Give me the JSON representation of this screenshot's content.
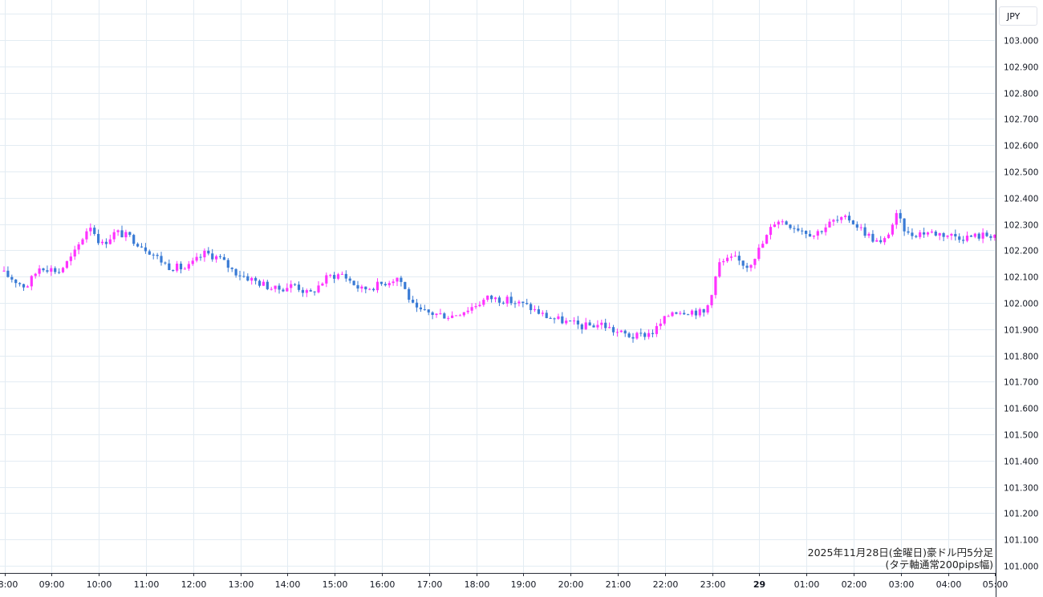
{
  "currency_label": "JPY",
  "caption_line1": "2025年11月28日(金曜日)豪ドル円5分足",
  "caption_line2": "(タテ軸通常200pips幅)",
  "colors": {
    "up": "#ff33ff",
    "down": "#3a7bd5",
    "grid": "#e3ecf3",
    "axis_text": "#131722"
  },
  "chart_data": {
    "type": "candlestick",
    "title": "",
    "ylabel": "JPY",
    "ylim": [
      100.99,
      103.05
    ],
    "y_ticks": [
      "103.000",
      "102.900",
      "102.800",
      "102.700",
      "102.600",
      "102.500",
      "102.400",
      "102.300",
      "102.200",
      "102.100",
      "102.000",
      "101.900",
      "101.800",
      "101.700",
      "101.600",
      "101.500",
      "101.400",
      "101.300",
      "101.200",
      "101.100",
      "101.000"
    ],
    "x_ticks": [
      {
        "label": "08:00",
        "hour": 8
      },
      {
        "label": "09:00",
        "hour": 9
      },
      {
        "label": "10:00",
        "hour": 10
      },
      {
        "label": "11:00",
        "hour": 11
      },
      {
        "label": "12:00",
        "hour": 12
      },
      {
        "label": "13:00",
        "hour": 13
      },
      {
        "label": "14:00",
        "hour": 14
      },
      {
        "label": "15:00",
        "hour": 15
      },
      {
        "label": "16:00",
        "hour": 16
      },
      {
        "label": "17:00",
        "hour": 17
      },
      {
        "label": "18:00",
        "hour": 18
      },
      {
        "label": "19:00",
        "hour": 19
      },
      {
        "label": "20:00",
        "hour": 20
      },
      {
        "label": "21:00",
        "hour": 21
      },
      {
        "label": "22:00",
        "hour": 22
      },
      {
        "label": "23:00",
        "hour": 23
      },
      {
        "label": "29",
        "hour": 24,
        "bold": true
      },
      {
        "label": "01:00",
        "hour": 25
      },
      {
        "label": "02:00",
        "hour": 26
      },
      {
        "label": "03:00",
        "hour": 27
      },
      {
        "label": "04:00",
        "hour": 28
      },
      {
        "label": "05:00",
        "hour": 29
      }
    ],
    "x_range_hours": [
      7.95,
      28.98
    ],
    "close_path": [
      {
        "h": 7.95,
        "p": 102.12
      },
      {
        "h": 8.5,
        "p": 102.06
      },
      {
        "h": 8.8,
        "p": 102.14
      },
      {
        "h": 9.2,
        "p": 102.12
      },
      {
        "h": 9.5,
        "p": 102.18
      },
      {
        "h": 9.85,
        "p": 102.3
      },
      {
        "h": 10.1,
        "p": 102.22
      },
      {
        "h": 10.4,
        "p": 102.27
      },
      {
        "h": 10.7,
        "p": 102.25
      },
      {
        "h": 11.1,
        "p": 102.2
      },
      {
        "h": 11.5,
        "p": 102.14
      },
      {
        "h": 11.9,
        "p": 102.13
      },
      {
        "h": 12.3,
        "p": 102.19
      },
      {
        "h": 12.6,
        "p": 102.17
      },
      {
        "h": 12.9,
        "p": 102.12
      },
      {
        "h": 13.4,
        "p": 102.08
      },
      {
        "h": 13.8,
        "p": 102.05
      },
      {
        "h": 14.2,
        "p": 102.07
      },
      {
        "h": 14.5,
        "p": 102.03
      },
      {
        "h": 14.9,
        "p": 102.1
      },
      {
        "h": 15.2,
        "p": 102.11
      },
      {
        "h": 15.6,
        "p": 102.05
      },
      {
        "h": 16.0,
        "p": 102.07
      },
      {
        "h": 16.4,
        "p": 102.1
      },
      {
        "h": 16.75,
        "p": 101.97
      },
      {
        "h": 17.1,
        "p": 101.96
      },
      {
        "h": 17.5,
        "p": 101.95
      },
      {
        "h": 17.9,
        "p": 101.98
      },
      {
        "h": 18.3,
        "p": 102.02
      },
      {
        "h": 18.7,
        "p": 102.01
      },
      {
        "h": 19.1,
        "p": 101.99
      },
      {
        "h": 19.5,
        "p": 101.95
      },
      {
        "h": 19.9,
        "p": 101.93
      },
      {
        "h": 20.3,
        "p": 101.91
      },
      {
        "h": 20.7,
        "p": 101.92
      },
      {
        "h": 21.0,
        "p": 101.89
      },
      {
        "h": 21.4,
        "p": 101.87
      },
      {
        "h": 21.8,
        "p": 101.89
      },
      {
        "h": 22.2,
        "p": 101.97
      },
      {
        "h": 22.6,
        "p": 101.97
      },
      {
        "h": 22.9,
        "p": 101.96
      },
      {
        "h": 23.2,
        "p": 102.15
      },
      {
        "h": 23.5,
        "p": 102.17
      },
      {
        "h": 23.8,
        "p": 102.14
      },
      {
        "h": 24.1,
        "p": 102.22
      },
      {
        "h": 24.4,
        "p": 102.32
      },
      {
        "h": 24.8,
        "p": 102.29
      },
      {
        "h": 25.2,
        "p": 102.26
      },
      {
        "h": 25.6,
        "p": 102.31
      },
      {
        "h": 25.95,
        "p": 102.32
      },
      {
        "h": 26.4,
        "p": 102.25
      },
      {
        "h": 26.65,
        "p": 102.22
      },
      {
        "h": 26.95,
        "p": 102.33
      },
      {
        "h": 27.2,
        "p": 102.26
      },
      {
        "h": 27.6,
        "p": 102.27
      },
      {
        "h": 28.0,
        "p": 102.26
      },
      {
        "h": 28.4,
        "p": 102.25
      },
      {
        "h": 28.98,
        "p": 102.26
      }
    ]
  }
}
